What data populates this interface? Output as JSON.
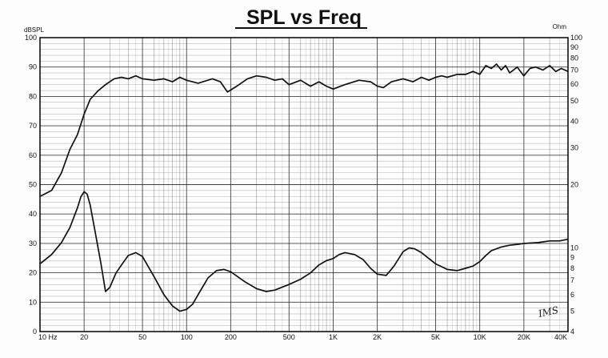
{
  "chart_data": {
    "type": "line",
    "title": "SPL vs Freq",
    "x_scale": "log",
    "xlim": [
      10,
      40000
    ],
    "x_ticks": [
      {
        "value": 10,
        "label": "10  Hz"
      },
      {
        "value": 20,
        "label": "20"
      },
      {
        "value": 50,
        "label": "50"
      },
      {
        "value": 100,
        "label": "100"
      },
      {
        "value": 200,
        "label": "200"
      },
      {
        "value": 500,
        "label": "500"
      },
      {
        "value": 1000,
        "label": "1K"
      },
      {
        "value": 2000,
        "label": "2K"
      },
      {
        "value": 5000,
        "label": "5K"
      },
      {
        "value": 10000,
        "label": "10K"
      },
      {
        "value": 20000,
        "label": "20K"
      },
      {
        "value": 40000,
        "label": "40K"
      }
    ],
    "left_axis": {
      "unit": "dBSPL",
      "ylim": [
        0,
        100
      ],
      "ticks": [
        0,
        10,
        20,
        30,
        40,
        50,
        60,
        70,
        80,
        90,
        100
      ]
    },
    "right_axis": {
      "unit": "Ohm",
      "scale": "log",
      "ylim": [
        4,
        100
      ],
      "labeled_ticks": [
        4,
        5,
        6,
        7,
        8,
        9,
        10,
        20,
        30,
        40,
        50,
        60,
        70,
        80,
        90,
        100
      ],
      "labels": [
        "4",
        "5",
        "6",
        "7",
        "8",
        "9",
        "10",
        "20",
        "30",
        "40",
        "50",
        "60",
        "70",
        "80",
        "90",
        "100"
      ]
    },
    "grid": true,
    "series": [
      {
        "axis": "left",
        "color": "#111111",
        "x": [
          10,
          12,
          14,
          16,
          18,
          20,
          22,
          25,
          28,
          32,
          36,
          40,
          45,
          50,
          60,
          70,
          80,
          90,
          100,
          120,
          150,
          170,
          190,
          220,
          260,
          300,
          350,
          400,
          450,
          500,
          600,
          700,
          800,
          900,
          1000,
          1200,
          1500,
          1800,
          2000,
          2200,
          2500,
          3000,
          3500,
          4000,
          4500,
          5000,
          5500,
          6000,
          7000,
          8000,
          9000,
          10000,
          11000,
          12000,
          13000,
          14000,
          15000,
          16000,
          17000,
          18000,
          20000,
          22000,
          24000,
          27000,
          30000,
          33000,
          36000,
          40000
        ],
        "y": [
          46,
          48,
          54,
          62,
          67,
          74,
          79,
          82,
          84,
          86,
          86.5,
          86,
          87,
          86,
          85.5,
          86,
          85,
          86.5,
          85.5,
          84.5,
          86,
          85,
          81.5,
          83.5,
          86,
          87,
          86.5,
          85.5,
          86,
          84,
          85.5,
          83.5,
          85,
          83.5,
          82.5,
          84,
          85.5,
          85,
          83.5,
          83,
          85,
          86,
          85,
          86.5,
          85.5,
          86.5,
          87,
          86.5,
          87.5,
          87.5,
          88.5,
          87.5,
          90.5,
          89.5,
          91,
          89,
          90.5,
          88,
          89,
          90,
          87,
          89.5,
          90,
          89,
          90.5,
          88.5,
          89.5,
          88.5
        ]
      },
      {
        "axis": "right",
        "color": "#111111",
        "x": [
          10,
          12,
          14,
          16,
          18,
          19,
          20,
          21,
          22,
          24,
          26,
          28,
          30,
          33,
          36,
          40,
          45,
          50,
          55,
          60,
          70,
          80,
          90,
          100,
          110,
          120,
          140,
          160,
          180,
          200,
          250,
          300,
          350,
          400,
          500,
          600,
          700,
          800,
          900,
          1000,
          1100,
          1200,
          1400,
          1600,
          1800,
          2000,
          2300,
          2600,
          3000,
          3300,
          3600,
          4000,
          5000,
          6000,
          7000,
          8000,
          9000,
          10000,
          11000,
          12000,
          14000,
          16000,
          18000,
          20000,
          25000,
          30000,
          35000,
          40000
        ],
        "y": [
          8.4,
          9.3,
          10.6,
          12.5,
          15.5,
          17.5,
          18.5,
          18,
          16,
          11.5,
          8.5,
          6.2,
          6.5,
          7.6,
          8.3,
          9.2,
          9.5,
          9.1,
          8.1,
          7.3,
          6.0,
          5.3,
          5.0,
          5.1,
          5.4,
          6.0,
          7.2,
          7.8,
          7.9,
          7.7,
          6.9,
          6.4,
          6.2,
          6.3,
          6.7,
          7.1,
          7.6,
          8.3,
          8.7,
          8.9,
          9.3,
          9.5,
          9.3,
          8.8,
          8.0,
          7.5,
          7.4,
          8.2,
          9.6,
          10.0,
          9.9,
          9.5,
          8.4,
          7.9,
          7.8,
          8.0,
          8.2,
          8.6,
          9.2,
          9.7,
          10.1,
          10.3,
          10.4,
          10.5,
          10.6,
          10.8,
          10.8,
          11.0
        ]
      }
    ],
    "annotations": [
      {
        "text": "IMS",
        "position": "bottom-right"
      }
    ]
  }
}
